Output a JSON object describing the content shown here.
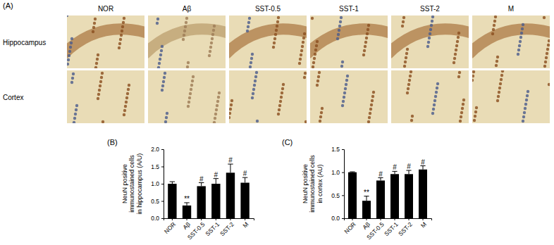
{
  "panel_a": {
    "panel_label": "(A)",
    "columns": [
      "NOR",
      "Aβ",
      "SST-0.5",
      "SST-1",
      "SST-2",
      "M"
    ],
    "rows": [
      "Hippocampus",
      "Cortex"
    ]
  },
  "chart_data": [
    {
      "type": "bar",
      "title": "(B)",
      "categories": [
        "NOR",
        "Aβ",
        "SST-0.5",
        "SST-1",
        "SST-2",
        "M"
      ],
      "values": [
        1.0,
        0.37,
        0.93,
        1.0,
        1.32,
        1.03
      ],
      "errors": [
        0.06,
        0.08,
        0.1,
        0.15,
        0.25,
        0.15
      ],
      "annotations": [
        null,
        "**",
        "#",
        "#",
        "#",
        "#"
      ],
      "y_label": [
        "NeuN positive",
        "immunostained cells",
        "in hippocampus (A/U)"
      ],
      "color": "#000000",
      "ylim": [
        0,
        2
      ],
      "yticks": [
        {
          "value": 0,
          "label": "0.0"
        },
        {
          "value": 0.5,
          "label": "0.5"
        },
        {
          "value": 1,
          "label": "1.0"
        },
        {
          "value": 1.5,
          "label": "1.5"
        },
        {
          "value": 2,
          "label": "2.0"
        }
      ],
      "grid": false
    },
    {
      "type": "bar",
      "title": "(C)",
      "categories": [
        "NOR",
        "Aβ",
        "SST-0.5",
        "SST-1",
        "SST-2",
        "M"
      ],
      "values": [
        1.0,
        0.38,
        0.82,
        0.96,
        0.96,
        1.06
      ],
      "errors": [
        0.01,
        0.1,
        0.06,
        0.06,
        0.08,
        0.08
      ],
      "annotations": [
        null,
        "**",
        "#",
        "#",
        "#",
        "#"
      ],
      "y_label": [
        "NeuN positive",
        "immunostained cells",
        "in cortex (AU)"
      ],
      "color": "#000000",
      "ylim": [
        0,
        1.5
      ],
      "yticks": [
        {
          "value": 0,
          "label": "0.0"
        },
        {
          "value": 0.5,
          "label": "0.5"
        },
        {
          "value": 1,
          "label": "1.0"
        },
        {
          "value": 1.5,
          "label": "1.5"
        }
      ],
      "grid": false
    }
  ]
}
